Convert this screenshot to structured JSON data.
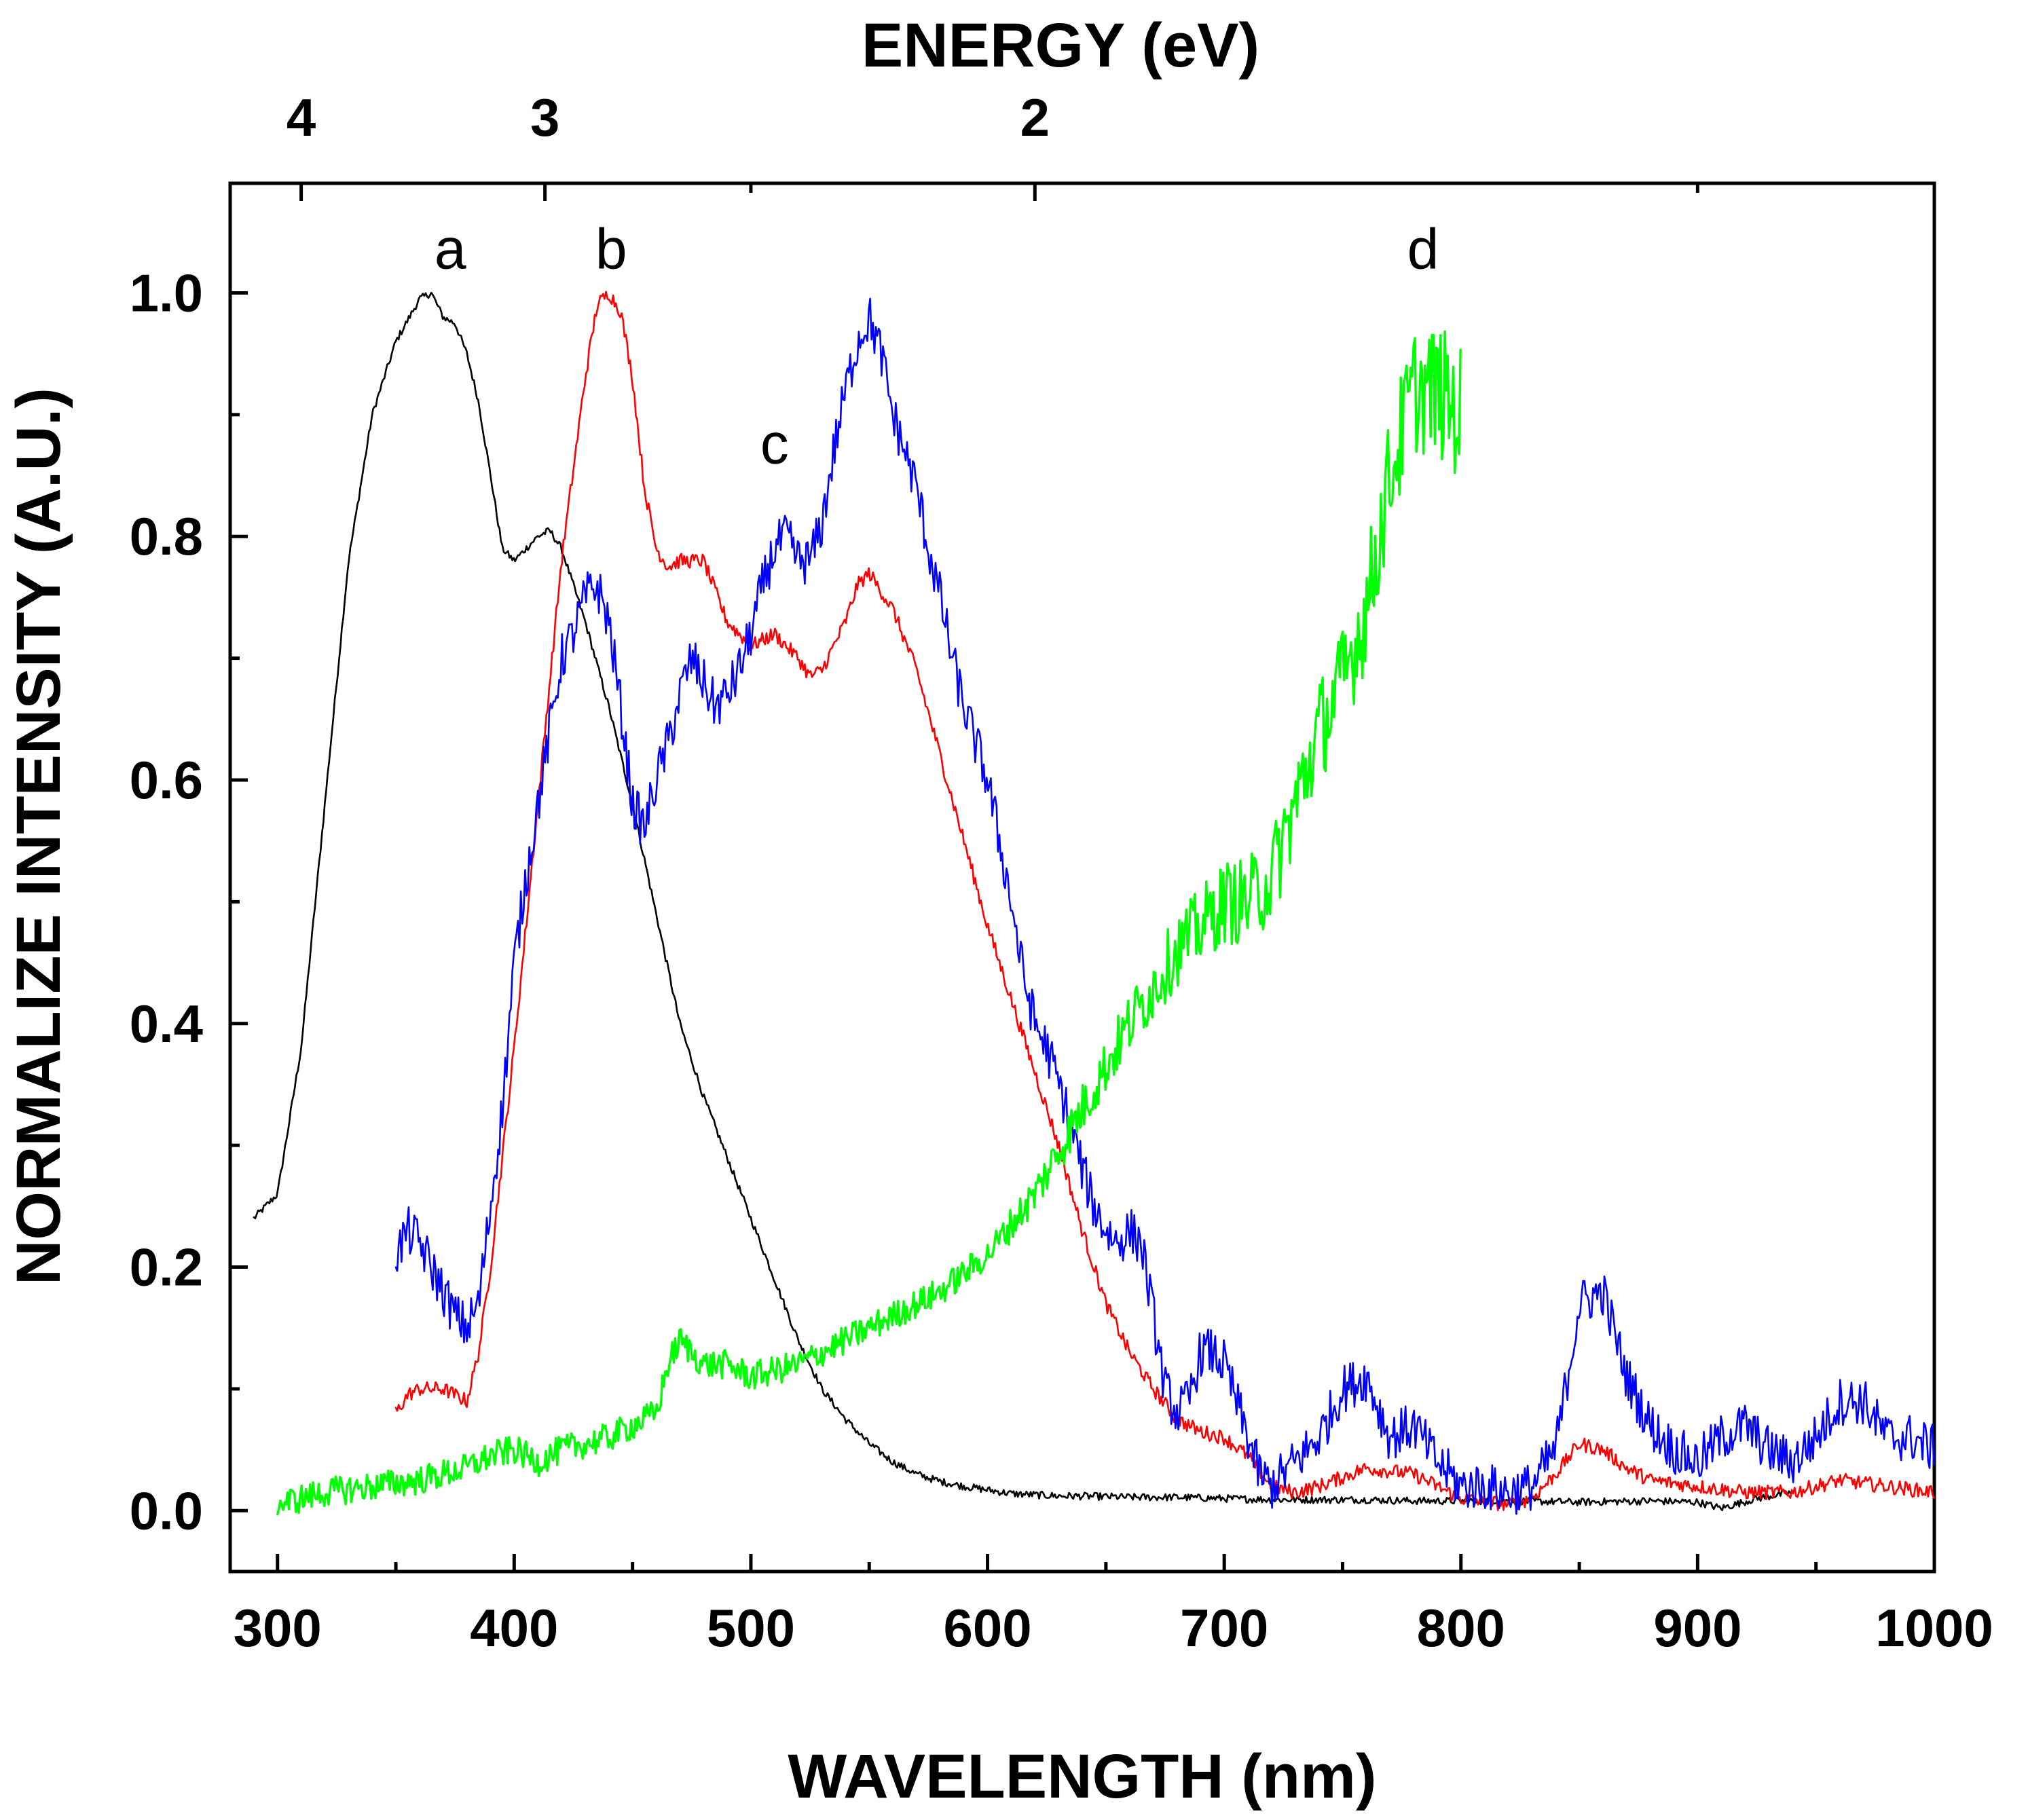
{
  "chart_data": {
    "type": "line",
    "title": "",
    "xlabel": "WAVELENGTH (nm)",
    "ylabel": "NORMALIZE INTENSITY (A.U.)",
    "top_xlabel": "ENERGY (eV)",
    "xlim": [
      280,
      1000
    ],
    "ylim": [
      -0.05,
      1.09
    ],
    "grid": false,
    "legend": "none",
    "x_ticks": [
      300,
      400,
      500,
      600,
      700,
      800,
      900,
      1000
    ],
    "x_tick_labels": [
      "300",
      "400",
      "500",
      "600",
      "700",
      "800",
      "900",
      "1000"
    ],
    "y_ticks": [
      0.0,
      0.2,
      0.4,
      0.6,
      0.8,
      1.0
    ],
    "y_tick_labels": [
      "0.0",
      "0.2",
      "0.4",
      "0.6",
      "0.8",
      "1.0"
    ],
    "top_ticks": [
      {
        "wavelength": 310,
        "label": "4"
      },
      {
        "wavelength": 413,
        "label": "3"
      },
      {
        "wavelength": 620,
        "label": "2"
      }
    ],
    "annotations": [
      {
        "text": "a",
        "x": 373,
        "y": 1.02
      },
      {
        "text": "b",
        "x": 441,
        "y": 1.02
      },
      {
        "text": "c",
        "x": 510,
        "y": 0.86
      },
      {
        "text": "d",
        "x": 784,
        "y": 1.02
      }
    ],
    "series": [
      {
        "name": "a",
        "color": "#000000",
        "noise": 0.003,
        "x": [
          290,
          300,
          310,
          320,
          330,
          340,
          350,
          360,
          365,
          370,
          375,
          380,
          385,
          390,
          395,
          400,
          405,
          410,
          415,
          420,
          430,
          440,
          450,
          460,
          470,
          480,
          490,
          500,
          510,
          520,
          530,
          540,
          550,
          560,
          570,
          580,
          590,
          600,
          610,
          620,
          630,
          640,
          660,
          680,
          700,
          720,
          740,
          760,
          780,
          800,
          820,
          850,
          880,
          900,
          910,
          925,
          940
        ],
        "y": [
          0.24,
          0.26,
          0.38,
          0.58,
          0.78,
          0.9,
          0.96,
          0.995,
          1.0,
          0.98,
          0.975,
          0.95,
          0.91,
          0.85,
          0.79,
          0.78,
          0.79,
          0.8,
          0.805,
          0.79,
          0.73,
          0.66,
          0.58,
          0.49,
          0.4,
          0.34,
          0.29,
          0.24,
          0.19,
          0.14,
          0.1,
          0.075,
          0.055,
          0.04,
          0.03,
          0.024,
          0.02,
          0.017,
          0.014,
          0.013,
          0.012,
          0.012,
          0.011,
          0.011,
          0.01,
          0.009,
          0.009,
          0.009,
          0.008,
          0.008,
          0.008,
          0.007,
          0.008,
          0.007,
          0.002,
          0.01,
          0.015
        ]
      },
      {
        "name": "b",
        "color": "#ff0000",
        "noise": 0.006,
        "x": [
          350,
          355,
          360,
          370,
          380,
          385,
          390,
          400,
          410,
          420,
          430,
          435,
          440,
          445,
          450,
          455,
          460,
          465,
          470,
          480,
          490,
          500,
          510,
          520,
          525,
          530,
          540,
          545,
          550,
          560,
          570,
          580,
          590,
          600,
          610,
          620,
          630,
          640,
          650,
          660,
          670,
          680,
          690,
          700,
          710,
          720,
          730,
          740,
          760,
          780,
          800,
          820,
          830,
          840,
          850,
          860,
          870,
          880,
          900,
          920,
          940,
          960,
          980,
          1000
        ],
        "y": [
          0.08,
          0.095,
          0.1,
          0.1,
          0.09,
          0.13,
          0.2,
          0.38,
          0.58,
          0.78,
          0.93,
          0.99,
          1.0,
          0.985,
          0.93,
          0.84,
          0.79,
          0.775,
          0.78,
          0.78,
          0.73,
          0.71,
          0.72,
          0.7,
          0.685,
          0.69,
          0.73,
          0.76,
          0.77,
          0.74,
          0.69,
          0.62,
          0.55,
          0.48,
          0.42,
          0.36,
          0.3,
          0.23,
          0.17,
          0.13,
          0.1,
          0.075,
          0.065,
          0.06,
          0.045,
          0.02,
          0.015,
          0.02,
          0.035,
          0.03,
          0.01,
          0.005,
          0.01,
          0.03,
          0.055,
          0.05,
          0.035,
          0.025,
          0.02,
          0.015,
          0.015,
          0.025,
          0.02,
          0.015
        ]
      },
      {
        "name": "c",
        "color": "#0000ff",
        "noise": 0.02,
        "x": [
          350,
          355,
          360,
          365,
          370,
          375,
          380,
          385,
          390,
          395,
          400,
          405,
          410,
          415,
          420,
          425,
          430,
          435,
          440,
          445,
          450,
          455,
          460,
          465,
          470,
          475,
          480,
          485,
          490,
          495,
          500,
          505,
          510,
          515,
          520,
          525,
          530,
          535,
          540,
          545,
          550,
          555,
          560,
          565,
          570,
          575,
          580,
          585,
          590,
          595,
          600,
          605,
          610,
          615,
          620,
          625,
          630,
          635,
          640,
          645,
          650,
          655,
          660,
          665,
          670,
          675,
          680,
          685,
          690,
          695,
          700,
          705,
          710,
          715,
          720,
          730,
          740,
          750,
          760,
          770,
          780,
          790,
          800,
          810,
          820,
          830,
          840,
          850,
          860,
          870,
          880,
          890,
          900,
          910,
          920,
          930,
          940,
          950,
          960,
          970,
          980,
          990,
          1000
        ],
        "y": [
          0.21,
          0.23,
          0.22,
          0.2,
          0.18,
          0.16,
          0.15,
          0.17,
          0.25,
          0.33,
          0.45,
          0.52,
          0.58,
          0.64,
          0.7,
          0.72,
          0.75,
          0.76,
          0.73,
          0.66,
          0.58,
          0.56,
          0.6,
          0.63,
          0.67,
          0.7,
          0.68,
          0.66,
          0.67,
          0.69,
          0.72,
          0.76,
          0.79,
          0.8,
          0.78,
          0.78,
          0.81,
          0.87,
          0.92,
          0.96,
          0.98,
          0.95,
          0.9,
          0.87,
          0.84,
          0.79,
          0.75,
          0.7,
          0.66,
          0.63,
          0.6,
          0.55,
          0.5,
          0.44,
          0.4,
          0.38,
          0.35,
          0.32,
          0.28,
          0.25,
          0.23,
          0.22,
          0.23,
          0.22,
          0.16,
          0.1,
          0.08,
          0.09,
          0.13,
          0.13,
          0.12,
          0.09,
          0.06,
          0.03,
          0.02,
          0.04,
          0.06,
          0.1,
          0.11,
          0.06,
          0.07,
          0.04,
          0.02,
          0.02,
          0.015,
          0.02,
          0.05,
          0.17,
          0.18,
          0.11,
          0.07,
          0.05,
          0.04,
          0.06,
          0.07,
          0.05,
          0.04,
          0.06,
          0.09,
          0.09,
          0.06,
          0.06,
          0.05
        ]
      },
      {
        "name": "d",
        "color": "#00ff00",
        "noise": 0.012,
        "noiseGrow": 0.045,
        "x": [
          300,
          320,
          340,
          360,
          380,
          390,
          400,
          410,
          420,
          440,
          460,
          465,
          470,
          480,
          490,
          500,
          520,
          540,
          560,
          580,
          600,
          620,
          640,
          660,
          680,
          700,
          710,
          720,
          730,
          740,
          750,
          760,
          770,
          780,
          790,
          800
        ],
        "y": [
          0.005,
          0.015,
          0.02,
          0.025,
          0.035,
          0.045,
          0.05,
          0.04,
          0.05,
          0.06,
          0.08,
          0.12,
          0.14,
          0.12,
          0.12,
          0.11,
          0.12,
          0.14,
          0.16,
          0.18,
          0.21,
          0.26,
          0.33,
          0.4,
          0.46,
          0.5,
          0.5,
          0.52,
          0.58,
          0.64,
          0.68,
          0.74,
          0.85,
          0.92,
          0.92,
          0.9
        ]
      }
    ]
  }
}
